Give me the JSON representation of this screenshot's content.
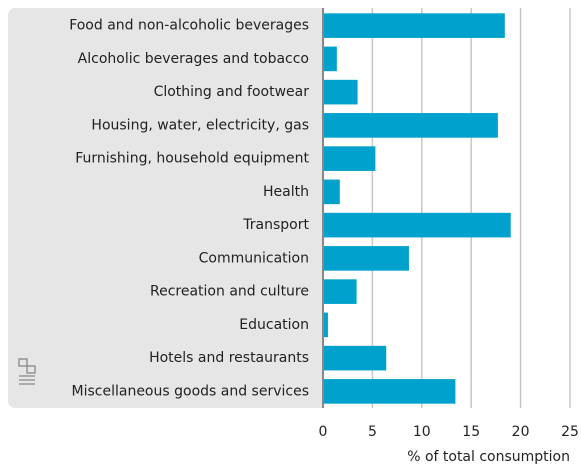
{
  "chart_data": {
    "type": "bar",
    "orientation": "horizontal",
    "categories": [
      "Food and non-alcoholic beverages",
      "Alcoholic beverages and tobacco",
      "Clothing and footwear",
      "Housing, water, electricity, gas",
      "Furnishing, household equipment",
      "Health",
      "Transport",
      "Communication",
      "Recreation and culture",
      "Education",
      "Hotels and restaurants",
      "Miscellaneous goods and services"
    ],
    "values": [
      18.4,
      1.4,
      3.5,
      17.7,
      5.3,
      1.7,
      19.0,
      8.7,
      3.4,
      0.5,
      6.4,
      13.4
    ],
    "color": "#00a1cd",
    "xlim": [
      0,
      25
    ],
    "xticks": [
      0,
      5,
      10,
      15,
      20,
      25
    ],
    "xlabel": "% of total consumption",
    "grid": true
  }
}
